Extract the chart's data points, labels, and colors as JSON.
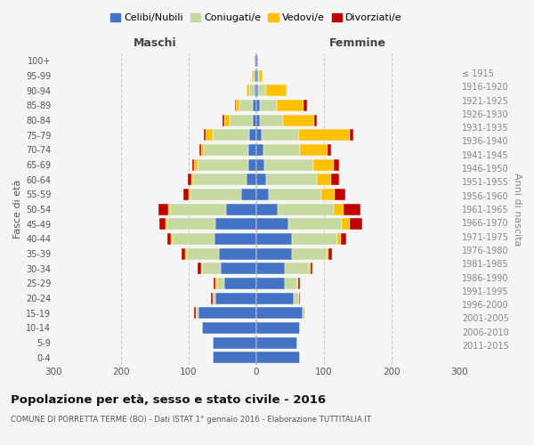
{
  "age_groups": [
    "0-4",
    "5-9",
    "10-14",
    "15-19",
    "20-24",
    "25-29",
    "30-34",
    "35-39",
    "40-44",
    "45-49",
    "50-54",
    "55-59",
    "60-64",
    "65-69",
    "70-74",
    "75-79",
    "80-84",
    "85-89",
    "90-94",
    "95-99",
    "100+"
  ],
  "birth_years": [
    "2011-2015",
    "2006-2010",
    "2001-2005",
    "1996-2000",
    "1991-1995",
    "1986-1990",
    "1981-1985",
    "1976-1980",
    "1971-1975",
    "1966-1970",
    "1961-1965",
    "1956-1960",
    "1951-1955",
    "1946-1950",
    "1941-1945",
    "1936-1940",
    "1931-1935",
    "1926-1930",
    "1921-1925",
    "1916-1920",
    "≤ 1915"
  ],
  "maschi": {
    "celibi": [
      65,
      65,
      80,
      85,
      60,
      48,
      52,
      55,
      62,
      60,
      45,
      22,
      15,
      12,
      12,
      10,
      5,
      5,
      2,
      2,
      2
    ],
    "coniugati": [
      0,
      0,
      0,
      5,
      5,
      10,
      28,
      48,
      62,
      72,
      82,
      75,
      78,
      75,
      65,
      55,
      35,
      20,
      8,
      2,
      0
    ],
    "vedovi": [
      0,
      0,
      0,
      0,
      0,
      2,
      2,
      2,
      2,
      2,
      3,
      3,
      3,
      5,
      5,
      10,
      8,
      5,
      5,
      2,
      0
    ],
    "divorziati": [
      0,
      0,
      0,
      2,
      2,
      3,
      5,
      5,
      5,
      10,
      15,
      8,
      5,
      3,
      2,
      2,
      2,
      2,
      0,
      0,
      0
    ]
  },
  "femmine": {
    "nubili": [
      65,
      60,
      65,
      68,
      55,
      42,
      42,
      52,
      52,
      48,
      32,
      18,
      15,
      12,
      10,
      8,
      5,
      5,
      3,
      2,
      2
    ],
    "coniugate": [
      0,
      0,
      0,
      5,
      8,
      18,
      35,
      52,
      68,
      78,
      82,
      78,
      75,
      72,
      55,
      55,
      35,
      25,
      12,
      2,
      0
    ],
    "vedove": [
      0,
      0,
      0,
      0,
      0,
      2,
      3,
      3,
      5,
      12,
      15,
      20,
      20,
      30,
      40,
      75,
      45,
      40,
      30,
      5,
      0
    ],
    "divorziate": [
      0,
      0,
      0,
      0,
      2,
      2,
      3,
      5,
      8,
      18,
      25,
      15,
      12,
      8,
      5,
      5,
      5,
      5,
      0,
      0,
      0
    ]
  },
  "colors": {
    "celibi": "#4472c4",
    "coniugati": "#c5d9a0",
    "vedovi": "#ffc000",
    "divorziati": "#c00000"
  },
  "title": "Popolazione per età, sesso e stato civile - 2016",
  "subtitle": "COMUNE DI PORRETTA TERME (BO) - Dati ISTAT 1° gennaio 2016 - Elaborazione TUTTITALIA.IT",
  "xlim": 300,
  "xlabel_left": "Maschi",
  "xlabel_right": "Femmine",
  "ylabel_left": "Fasce di età",
  "ylabel_right": "Anni di nascita",
  "legend_labels": [
    "Celibi/Nubili",
    "Coniugati/e",
    "Vedovi/e",
    "Divorziati/e"
  ],
  "background_color": "#f5f5f5"
}
